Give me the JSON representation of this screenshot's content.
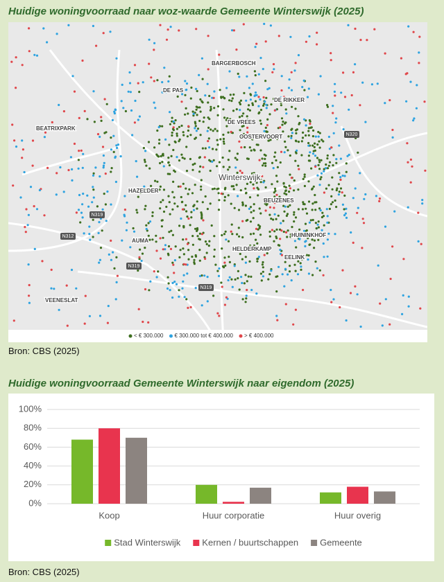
{
  "map": {
    "title": "Huidige woningvoorraad naar woz-waarde Gemeente Winterswijk (2025)",
    "place_labels": [
      "BARGERBOSCH",
      "DE PAS",
      "DE RIKKER",
      "BEATRIXPARK",
      "DE VREES",
      "OOSTERVOORT",
      "Winterswijk",
      "HAZELDER",
      "BEUZENES",
      "HUININKHOF",
      "AUMA",
      "HELDERKAMP",
      "EELINK",
      "VEENESLAT"
    ],
    "road_labels": [
      "N320",
      "N319",
      "N312",
      "N319",
      "N319"
    ],
    "legend": [
      {
        "label": "< € 300.000",
        "color": "#3d6e1f"
      },
      {
        "label": "€ 300.000 tot € 400.000",
        "color": "#2ea3e0"
      },
      {
        "label": "> € 400.000",
        "color": "#e0464a"
      }
    ],
    "source": "Bron: CBS (2025)"
  },
  "chart_data": {
    "type": "bar",
    "title": "Huidige woningvoorraad Gemeente Winterswijk naar eigendom (2025)",
    "categories": [
      "Koop",
      "Huur corporatie",
      "Huur overig"
    ],
    "series": [
      {
        "name": "Stad Winterswijk",
        "color": "#76b82a",
        "values": [
          68,
          20,
          12
        ]
      },
      {
        "name": "Kernen / buurtschappen",
        "color": "#e8344e",
        "values": [
          80,
          2,
          18
        ]
      },
      {
        "name": "Gemeente",
        "color": "#8c8480",
        "values": [
          70,
          17,
          13
        ]
      }
    ],
    "ylim": [
      0,
      100
    ],
    "yticks": [
      {
        "value": 0,
        "label": "0%"
      },
      {
        "value": 20,
        "label": "20%"
      },
      {
        "value": 40,
        "label": "40%"
      },
      {
        "value": 60,
        "label": "60%"
      },
      {
        "value": 80,
        "label": "80%"
      },
      {
        "value": 100,
        "label": "100%"
      }
    ],
    "grid": true,
    "legend": "bottom"
  },
  "chart_source": "Bron: CBS (2025)"
}
